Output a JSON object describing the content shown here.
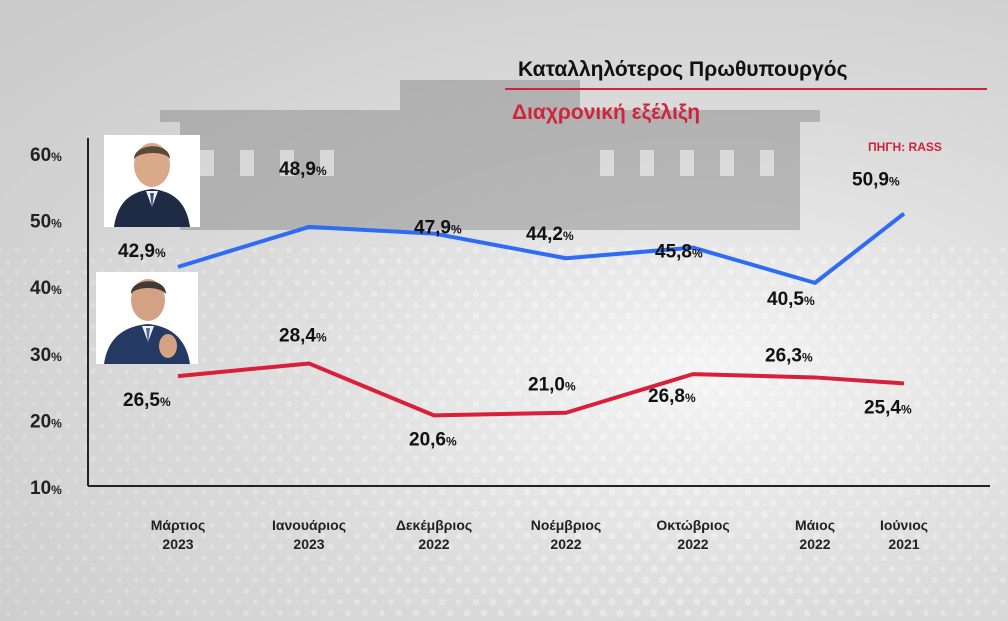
{
  "title": "Καταλληλότερος Πρωθυπουργός",
  "subtitle": "Διαχρονική εξέλιξη",
  "source": "ΠΗΓΗ: RASS",
  "colors": {
    "blue_series": "#2f6cf3",
    "red_series": "#d8203a",
    "accent": "#d0243a"
  },
  "chart_data": {
    "type": "line",
    "categories": [
      [
        "Μάρτιος",
        "2023"
      ],
      [
        "Ιανουάριος",
        "2023"
      ],
      [
        "Δεκέμβριος",
        "2022"
      ],
      [
        "Νοέμβριος",
        "2022"
      ],
      [
        "Οκτώβριος",
        "2022"
      ],
      [
        "Μάιος",
        "2022"
      ],
      [
        "Ιούνιος",
        "2021"
      ]
    ],
    "y_ticks": [
      10,
      20,
      30,
      40,
      50,
      60
    ],
    "ylim": [
      10,
      60
    ],
    "y_unit": "%",
    "series": [
      {
        "color": "#2f6cf3",
        "values": [
          42.9,
          48.9,
          47.9,
          44.2,
          45.8,
          40.5,
          50.9
        ],
        "labels": [
          "42,9",
          "48,9",
          "47,9",
          "44,2",
          "45,8",
          "40,5",
          "50,9"
        ]
      },
      {
        "color": "#d8203a",
        "values": [
          26.5,
          28.4,
          20.6,
          21.0,
          26.8,
          26.3,
          25.4
        ],
        "labels": [
          "26,5",
          "28,4",
          "20,6",
          "21,0",
          "26,8",
          "26,3",
          "25,4"
        ]
      }
    ]
  }
}
